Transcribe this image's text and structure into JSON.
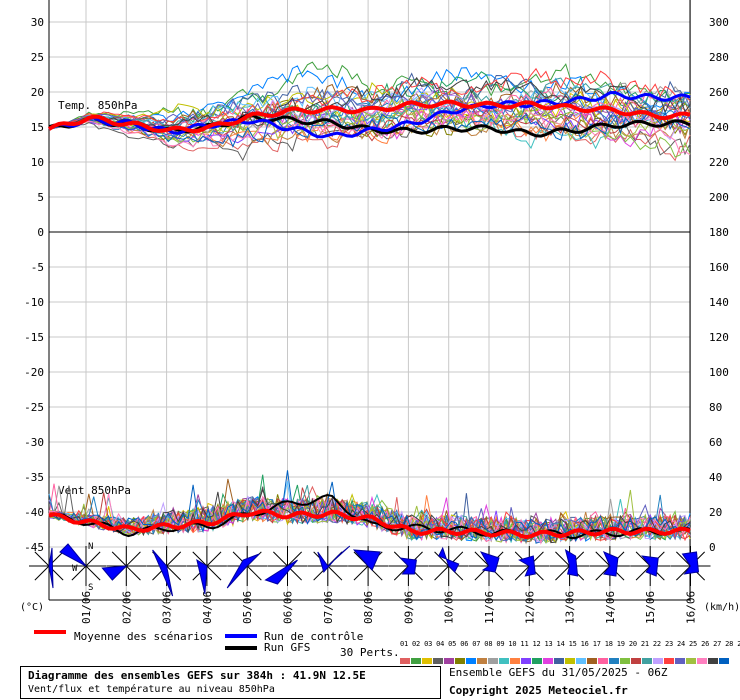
{
  "chart_data": {
    "type": "line",
    "subtitle": "Ensemble GEFS du 31/05/2025 - 06Z",
    "x_labels": [
      "01/06",
      "02/06",
      "03/06",
      "04/06",
      "05/06",
      "06/06",
      "07/06",
      "08/06",
      "09/06",
      "10/06",
      "11/06",
      "12/06",
      "13/06",
      "14/06",
      "15/06",
      "16/06"
    ],
    "top_panel": {
      "label": "Temp. 850hPa",
      "ylim_left": [
        0,
        30
      ],
      "yticks_left": [
        "30",
        "25",
        "20",
        "15",
        "10",
        "5",
        "0"
      ],
      "yticks_right": [
        "300",
        "280",
        "260",
        "240",
        "220",
        "200",
        "180"
      ],
      "series": [
        {
          "name": "Moyenne des scénarios",
          "values": [
            14.7,
            16.3,
            15.4,
            14.5,
            14.9,
            16.5,
            17.3,
            17.5,
            17.4,
            18.2,
            18.3,
            18.1,
            18.2,
            17.7,
            17.4,
            16.6
          ]
        },
        {
          "name": "Run de contrôle",
          "values": [
            14.7,
            16.0,
            15.5,
            14.3,
            15.3,
            16.0,
            14.8,
            13.6,
            14.5,
            15.5,
            17.3,
            18.2,
            18.3,
            18.7,
            19.6,
            19.2
          ]
        },
        {
          "name": "Run GFS",
          "values": [
            14.7,
            16.0,
            15.3,
            14.4,
            15.0,
            16.4,
            16.0,
            15.6,
            14.6,
            14.4,
            14.8,
            14.8,
            14.0,
            14.5,
            15.3,
            15.5
          ]
        }
      ]
    },
    "bottom_panel": {
      "label": "Vent 850hPa",
      "yticks_left": [
        "-5",
        "-10",
        "-15",
        "-20",
        "-25",
        "-30",
        "-35",
        "-40",
        "-45"
      ],
      "yticks_right": [
        "160",
        "140",
        "120",
        "100",
        "80",
        "60",
        "40",
        "20",
        "0"
      ],
      "series": [
        {
          "name": "Moyenne des scénarios",
          "values": [
            18,
            14,
            10,
            12,
            14,
            20,
            18,
            19,
            16,
            9,
            9,
            8,
            7,
            8,
            9,
            9
          ]
        },
        {
          "name": "Run GFS",
          "values": [
            18,
            14,
            8,
            11,
            12,
            19,
            25,
            28,
            12,
            11,
            10,
            8,
            8,
            7,
            8,
            9
          ]
        }
      ]
    },
    "left_unit": "(°C)",
    "right_unit": "(km/h)",
    "compass": [
      "N",
      "W",
      "S"
    ]
  },
  "legend": {
    "mean": "Moyenne des scénarios",
    "control": "Run de contrôle",
    "gfs": "Run GFS",
    "perts": "30 Perts.",
    "pert_numbers": "01 02 03 04 05 06 07 08 09 10 11 12 13 14 15 16 17 18 19 20 21 22 23 24 25 26 27 28 29 30"
  },
  "footer": {
    "title": "Diagramme des ensembles GEFS sur 384h : 41.9N 12.5E",
    "desc": "Vent/flux et température au niveau 850hPa",
    "run": "Ensemble GEFS du 31/05/2025 - 06Z",
    "copyright": "Copyright 2025 Meteociel.fr"
  },
  "colors": {
    "mean": "#ff0000",
    "control": "#0000ff",
    "gfs": "#000000",
    "grid": "#c8c8c8",
    "wind_fill": "#0000ff",
    "swatches": [
      "#e06060",
      "#40a040",
      "#e0c000",
      "#606060",
      "#a040a0",
      "#808000",
      "#0080ff",
      "#c08040",
      "#a0a0a0",
      "#40c0c0",
      "#ff8040",
      "#8040ff",
      "#20a060",
      "#e040e0",
      "#4060a0",
      "#c0c000",
      "#60c0ff",
      "#a06020",
      "#ff60a0",
      "#2080c0",
      "#80c040",
      "#c04040",
      "#40a0a0",
      "#c0a0ff",
      "#ff4040",
      "#6060c0",
      "#a0c040",
      "#ff80c0",
      "#404040",
      "#0060c0"
    ]
  }
}
